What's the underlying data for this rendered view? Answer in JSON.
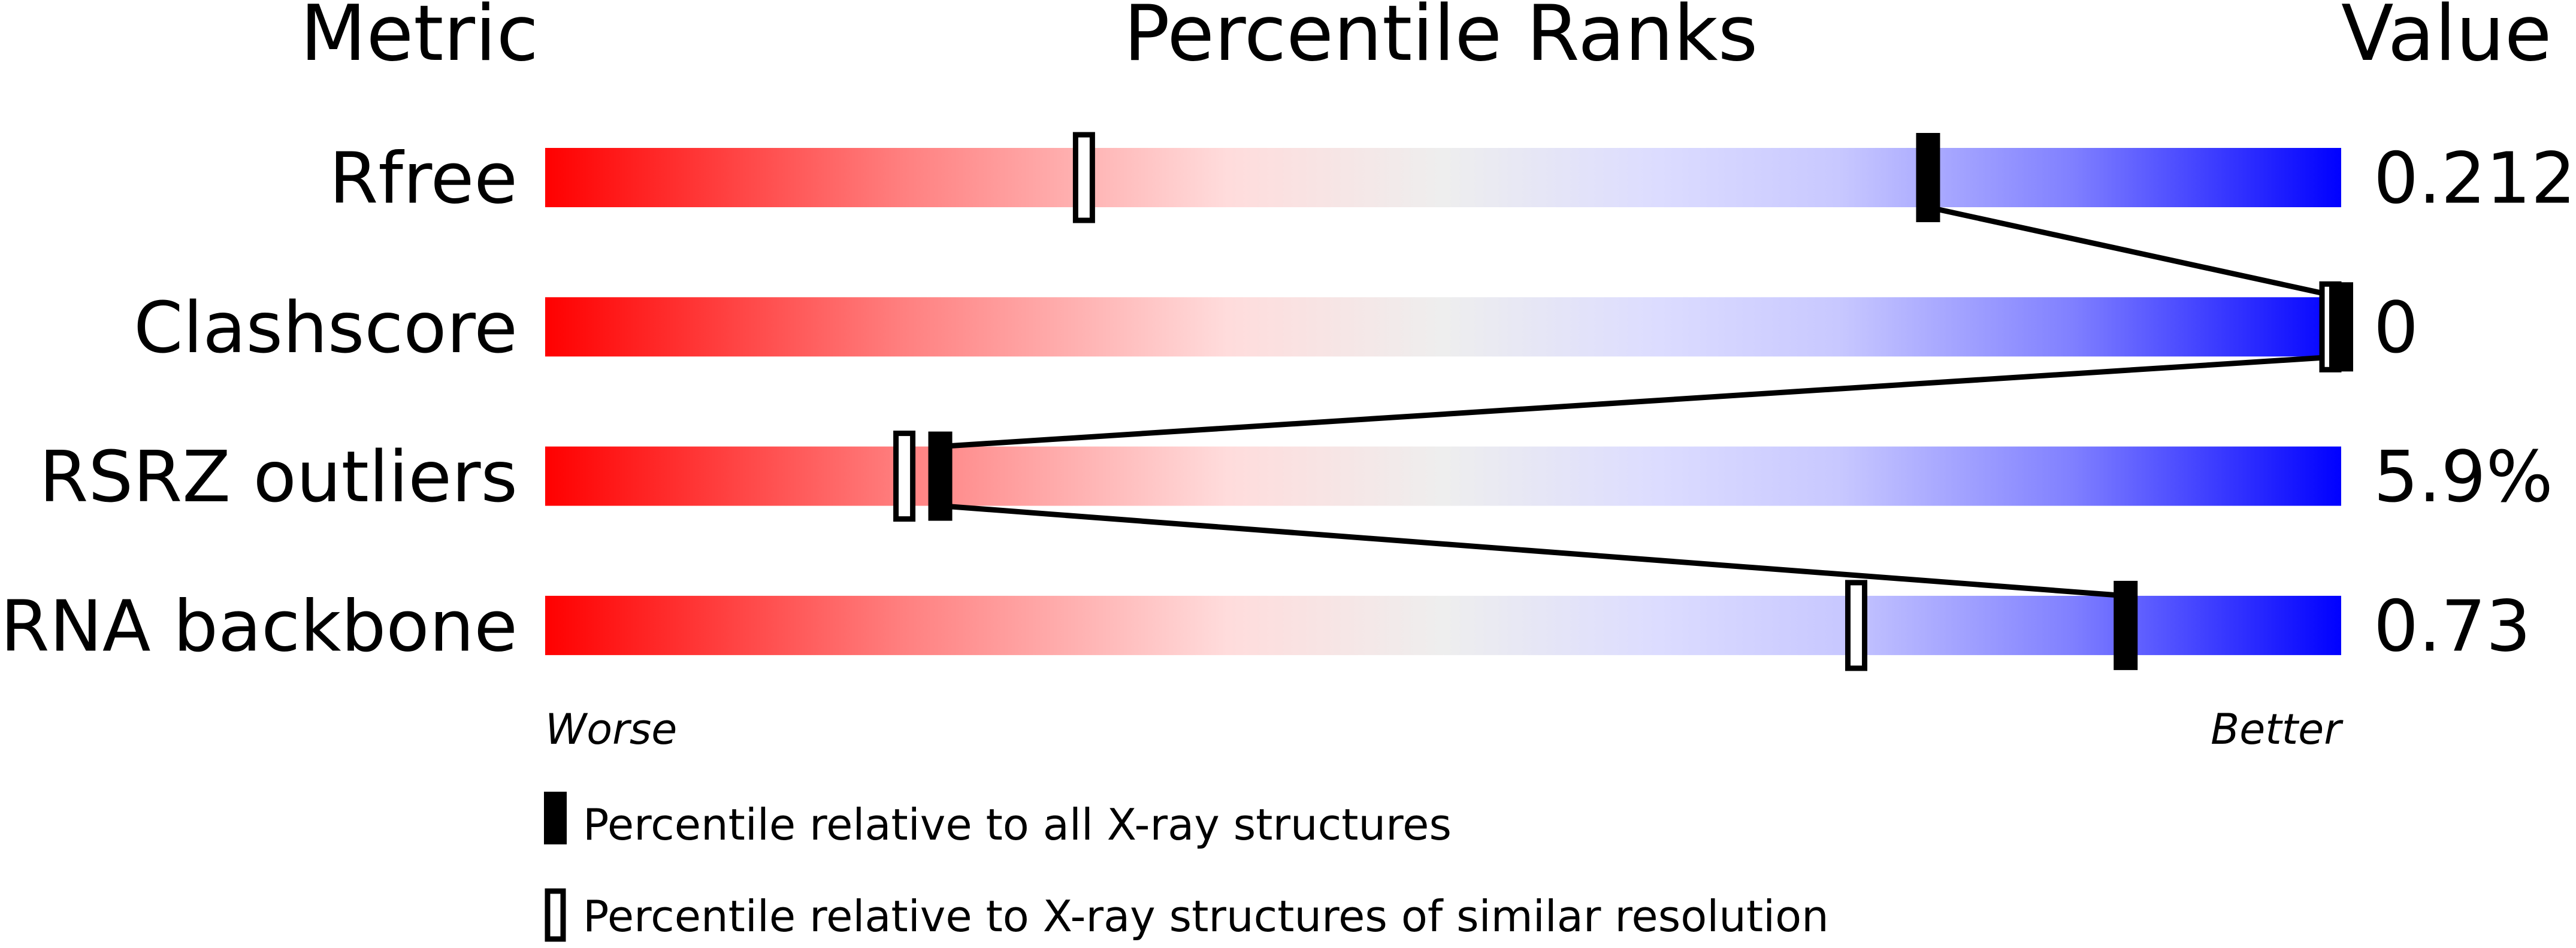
{
  "chart_data": {
    "type": "percentile-slider",
    "headers": {
      "metric": "Metric",
      "ranks": "Percentile Ranks",
      "value": "Value"
    },
    "metrics": [
      {
        "name": "Rfree",
        "value": "0.212",
        "percentile_all": 77,
        "percentile_similar": 30
      },
      {
        "name": "Clashscore",
        "value": "0",
        "percentile_all": 100,
        "percentile_similar": 100
      },
      {
        "name": "RSRZ outliers",
        "value": "5.9%",
        "percentile_all": 22,
        "percentile_similar": 20
      },
      {
        "name": "RNA backbone",
        "value": "0.73",
        "percentile_all": 88,
        "percentile_similar": 73
      }
    ],
    "axis": {
      "left": "Worse",
      "right": "Better",
      "range": [
        0,
        100
      ]
    },
    "legend": {
      "all": "Percentile relative to all X-ray structures",
      "similar": "Percentile relative to X-ray structures of similar resolution"
    },
    "colors": {
      "worse": "#ff0000",
      "middle": "#eeeeee",
      "better": "#0000ff",
      "marker": "#000000"
    }
  }
}
